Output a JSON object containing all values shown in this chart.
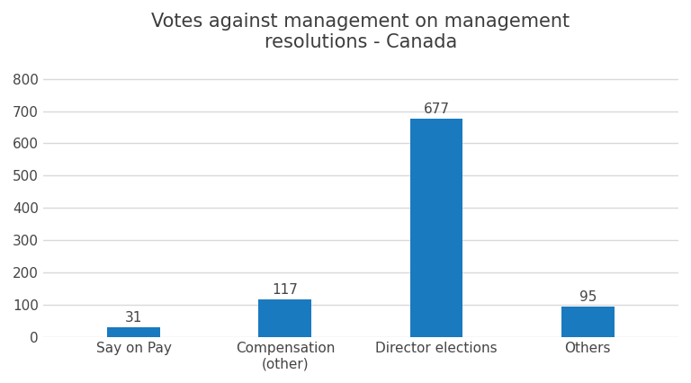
{
  "title": "Votes against management on management\nresolutions - Canada",
  "categories": [
    "Say on Pay",
    "Compensation\n(other)",
    "Director elections",
    "Others"
  ],
  "values": [
    31,
    117,
    677,
    95
  ],
  "bar_color": "#1a7abf",
  "ylim": [
    0,
    850
  ],
  "yticks": [
    0,
    100,
    200,
    300,
    400,
    500,
    600,
    700,
    800
  ],
  "title_fontsize": 15,
  "tick_fontsize": 11,
  "value_label_fontsize": 11,
  "background_color": "#ffffff",
  "grid_color": "#d9d9d9",
  "bar_width": 0.35
}
